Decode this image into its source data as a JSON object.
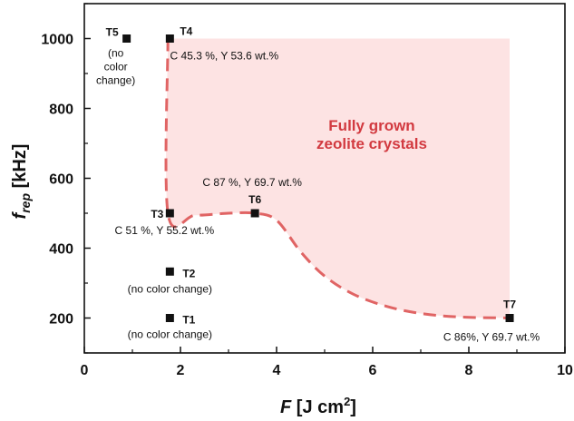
{
  "chart_data": {
    "type": "scatter",
    "xlabel": {
      "symbol": "F",
      "unit_open": " [J cm",
      "unit_sup": "2",
      "unit_close": "]"
    },
    "ylabel": {
      "symbol": "f",
      "sub": "rep",
      "unit": " [kHz]"
    },
    "xlim": [
      0,
      10
    ],
    "ylim": [
      100,
      1100
    ],
    "x_ticks": [
      0,
      2,
      4,
      6,
      8,
      10
    ],
    "y_ticks": [
      200,
      400,
      600,
      800,
      1000
    ],
    "grid": false,
    "points": [
      {
        "label": "T1",
        "x": 1.78,
        "y": 200,
        "notes": [
          "(no color change)"
        ]
      },
      {
        "label": "T2",
        "x": 1.78,
        "y": 333,
        "notes": [
          "(no color change)"
        ]
      },
      {
        "label": "T3",
        "x": 1.78,
        "y": 500,
        "notes": [
          "C 51 %, Y 55.2 wt.%"
        ]
      },
      {
        "label": "T4",
        "x": 1.78,
        "y": 1000,
        "notes": [
          "C 45.3 %, Y 53.6 wt.%"
        ]
      },
      {
        "label": "T5",
        "x": 0.88,
        "y": 1000,
        "notes": [
          "(no",
          "color",
          "change)"
        ]
      },
      {
        "label": "T6",
        "x": 3.55,
        "y": 500,
        "notes": [
          "C 87 %, Y 69.7 wt.%"
        ]
      },
      {
        "label": "T7",
        "x": 8.85,
        "y": 200,
        "notes": [
          "C 86%, Y 69.7 wt.%"
        ]
      }
    ],
    "region": {
      "label_lines": [
        "Fully grown",
        "zeolite crystals"
      ],
      "fill": "#fde3e3",
      "boundary_color": "#e06464",
      "boundary": [
        [
          1.74,
          1000
        ],
        [
          1.74,
          500
        ],
        [
          2.3,
          494
        ],
        [
          3.0,
          500
        ],
        [
          3.55,
          500
        ],
        [
          4.0,
          480
        ],
        [
          4.5,
          390
        ],
        [
          5.0,
          320
        ],
        [
          5.6,
          268
        ],
        [
          6.3,
          233
        ],
        [
          7.0,
          213
        ],
        [
          7.8,
          203
        ],
        [
          8.85,
          200
        ]
      ],
      "closing_corners": [
        [
          8.85,
          1000
        ]
      ]
    },
    "marker_color": "#111111"
  }
}
